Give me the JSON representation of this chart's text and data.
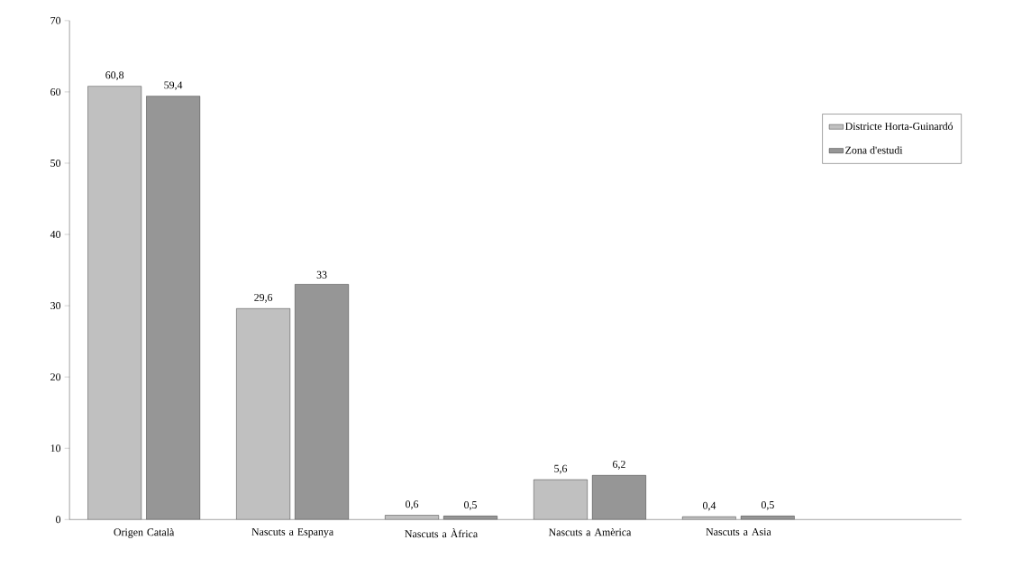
{
  "chart_data": {
    "type": "bar",
    "categories": [
      "Origen Català",
      "Nascuts a Espanya",
      "Nascuts a Àfrica",
      "Nascuts a Amèrica",
      "Nascuts a Asia",
      null
    ],
    "series": [
      {
        "name": "Districte Horta-Guinardó",
        "color": "#c0c0c0",
        "values": [
          60.8,
          29.6,
          0.6,
          5.6,
          0.4,
          null
        ],
        "value_labels": [
          "60,8",
          "29,6",
          "0,6",
          "5,6",
          "0,4",
          null
        ]
      },
      {
        "name": "Zona d'estudi",
        "color": "#969696",
        "values": [
          59.4,
          33,
          0.5,
          6.2,
          0.5,
          null
        ],
        "value_labels": [
          "59,4",
          "33",
          "0,5",
          "6,2",
          "0,5",
          null
        ]
      }
    ],
    "ylim": [
      0,
      70
    ],
    "yticks": [
      0,
      10,
      20,
      30,
      40,
      50,
      60,
      70
    ],
    "grid": false,
    "legend": "top right"
  }
}
